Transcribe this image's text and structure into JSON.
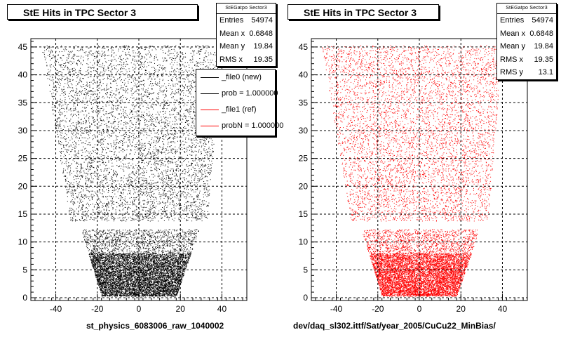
{
  "chart_data": [
    {
      "type": "scatter",
      "title": "StE Hits in TPC Sector 3",
      "xlabel": "st_physics_6083006_raw_1040002",
      "xlim": [
        -52,
        52
      ],
      "ylim": [
        -0.5,
        46.5
      ],
      "xticks": [
        -40,
        -20,
        0,
        20,
        40
      ],
      "yticks": [
        0,
        5,
        10,
        15,
        20,
        25,
        30,
        35,
        40,
        45
      ],
      "grid": true,
      "marker_color": "#000000",
      "stats": {
        "name": "StEGatpo Sector3",
        "rows": [
          {
            "label": "Entries",
            "value": "54974"
          },
          {
            "label": "Mean x",
            "value": "0.6848"
          },
          {
            "label": "Mean y",
            "value": "19.84"
          },
          {
            "label": "RMS x",
            "value": "19.35"
          }
        ]
      },
      "legend": {
        "placement": "top-right",
        "entries": [
          {
            "label": "_file0 (new)",
            "color": "#000000"
          },
          {
            "label": "prob = 1.000000",
            "color": "#000000"
          },
          {
            "label": "_file1 (ref)",
            "color": "#ff0000"
          },
          {
            "label": "probN = 1.000000",
            "color": "#ff0000"
          }
        ]
      },
      "region": {
        "upper_y_range": [
          13.8,
          45.3
        ],
        "upper_x_at_top": [
          -47,
          40
        ],
        "upper_x_at_bottom": [
          -33,
          33
        ],
        "lower_y_range": [
          0.3,
          12.3
        ],
        "lower_x_at_top": [
          -28,
          29
        ],
        "lower_x_at_bottom": [
          -18,
          18
        ],
        "gap_y": [
          12.3,
          13.8
        ]
      },
      "entries": 54974
    },
    {
      "type": "scatter",
      "title": "StE Hits in TPC Sector 3",
      "xlabel": "dev/daq_sl302.ittf/Sat/year_2005/CuCu22_MinBias/",
      "xlim": [
        -52,
        52
      ],
      "ylim": [
        -0.5,
        46.5
      ],
      "xticks": [
        -40,
        -20,
        0,
        20,
        40
      ],
      "yticks": [
        0,
        5,
        10,
        15,
        20,
        25,
        30,
        35,
        40,
        45
      ],
      "grid": true,
      "marker_color": "#ff0000",
      "stats": {
        "name": "StEGatpo Sector3",
        "rows": [
          {
            "label": "Entries",
            "value": "54974"
          },
          {
            "label": "Mean x",
            "value": "0.6848"
          },
          {
            "label": "Mean y",
            "value": "19.84"
          },
          {
            "label": "RMS x",
            "value": "19.35"
          },
          {
            "label": "RMS y",
            "value": "13.1"
          }
        ]
      },
      "region": {
        "upper_y_range": [
          13.8,
          45.3
        ],
        "upper_x_at_top": [
          -47,
          40
        ],
        "upper_x_at_bottom": [
          -33,
          33
        ],
        "lower_y_range": [
          0.3,
          12.3
        ],
        "lower_x_at_top": [
          -28,
          29
        ],
        "lower_x_at_bottom": [
          -18,
          18
        ],
        "gap_y": [
          12.3,
          13.8
        ]
      },
      "entries": 54974
    }
  ]
}
